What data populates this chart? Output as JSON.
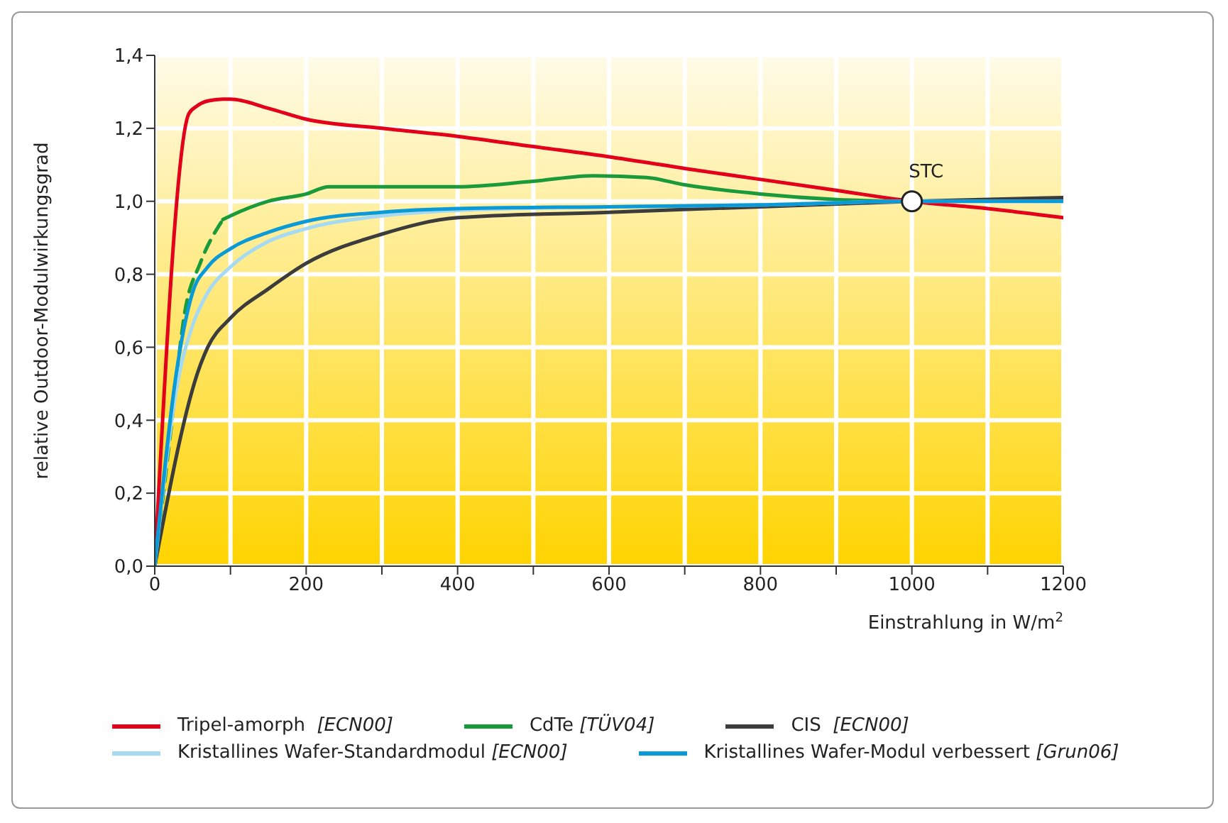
{
  "chart_data": {
    "type": "line",
    "xlabel": "Einstrahlung in W/m$^{2}$",
    "ylabel": "relative Outdoor-Modulwirkungsgrad",
    "xlim": [
      0,
      1200
    ],
    "xticks": [
      0,
      {
        "value": 100,
        "label": null
      },
      200,
      {
        "value": 300,
        "label": null
      },
      400,
      {
        "value": 500,
        "label": null
      },
      600,
      {
        "value": 700,
        "label": null
      },
      800,
      {
        "value": 900,
        "label": null
      },
      1000,
      {
        "value": 1100,
        "label": null
      },
      1200
    ],
    "ylim": [
      0,
      1.4
    ],
    "yticks": [
      {
        "value": 0,
        "label": "0,0"
      },
      {
        "value": 0.2,
        "label": "0,2"
      },
      {
        "value": 0.4,
        "label": "0,4"
      },
      {
        "value": 0.6,
        "label": "0,6"
      },
      {
        "value": 0.8,
        "label": "0,8"
      },
      {
        "value": 1.0,
        "label": "1,0"
      },
      {
        "value": 1.2,
        "label": "1,2"
      },
      {
        "value": 1.4,
        "label": "1,4"
      }
    ],
    "grid": true,
    "legend": "bottom",
    "marker": "none",
    "annotations": [
      {
        "text": "STC",
        "x": 1000,
        "y": 1.0
      }
    ],
    "series": [
      {
        "name": "Tripel-amorph  [ECN00]",
        "color": "#e3001b",
        "x": [
          0,
          45,
          55,
          70,
          90,
          100,
          150,
          200,
          300,
          400,
          500,
          600,
          700,
          800,
          900,
          1000,
          1100,
          1200
        ],
        "values": [
          0,
          1.24,
          1.26,
          1.275,
          1.28,
          1.28,
          1.255,
          1.225,
          1.2,
          1.178,
          1.15,
          1.122,
          1.09,
          1.06,
          1.03,
          1.0,
          0.98,
          0.955
        ]
      },
      {
        "name": "CdTe [TÜV04]",
        "color": "#1a9a3a",
        "x": [
          90,
          100,
          150,
          200,
          230,
          300,
          400,
          500,
          580,
          650,
          700,
          800,
          900,
          1000
        ],
        "values": [
          0.95,
          0.96,
          1.0,
          1.02,
          1.04,
          1.04,
          1.04,
          1.055,
          1.07,
          1.065,
          1.045,
          1.02,
          1.005,
          1.0
        ]
      },
      {
        "color": "#1a9a3a",
        "line_style": "dashed",
        "x": [
          0,
          20,
          40,
          60,
          90
        ],
        "values": [
          0,
          0.35,
          0.7,
          0.83,
          0.95
        ]
      },
      {
        "name": "CIS  [ECN00]",
        "color": "#3c3c3c",
        "x": [
          0,
          60,
          70,
          100,
          150,
          200,
          300,
          400,
          600,
          800,
          1000,
          1200
        ],
        "values": [
          0,
          0.55,
          0.6,
          0.68,
          0.76,
          0.83,
          0.91,
          0.955,
          0.97,
          0.985,
          1.0,
          1.01
        ]
      },
      {
        "name": "Kristallines Wafer-Standardmodul [ECN00]",
        "color": "#a6d9f2",
        "x": [
          0,
          30,
          50,
          70,
          100,
          150,
          200,
          300,
          400,
          600,
          800,
          1000,
          1200
        ],
        "values": [
          0,
          0.5,
          0.66,
          0.75,
          0.82,
          0.89,
          0.925,
          0.96,
          0.975,
          0.985,
          0.99,
          1.0,
          1.0
        ]
      },
      {
        "name": "Kristallines Wafer-Modul verbessert [Grun06]",
        "color": "#0a9ad8",
        "x": [
          0,
          30,
          50,
          70,
          100,
          150,
          200,
          300,
          400,
          600,
          800,
          1000,
          1200
        ],
        "values": [
          0,
          0.55,
          0.75,
          0.82,
          0.87,
          0.915,
          0.945,
          0.97,
          0.98,
          0.985,
          0.99,
          1.0,
          1.0
        ]
      }
    ]
  }
}
